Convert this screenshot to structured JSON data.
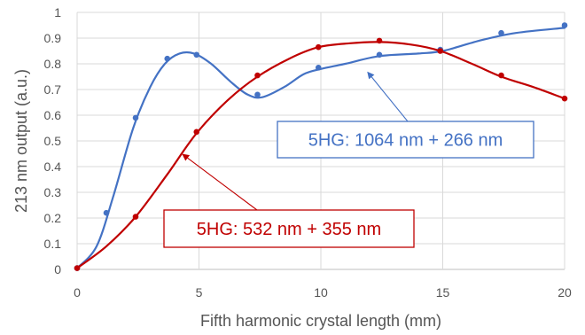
{
  "chart_data": {
    "type": "scatter",
    "xlabel": "Fifth harmonic crystal length (mm)",
    "ylabel": "213 nm output (a.u.)",
    "xlim": [
      0,
      20
    ],
    "ylim": [
      0,
      1
    ],
    "x_ticks": [
      "0",
      "5",
      "10",
      "15",
      "20"
    ],
    "y_ticks": [
      "0",
      "0.1",
      "0.2",
      "0.3",
      "0.4",
      "0.5",
      "0.6",
      "0.7",
      "0.8",
      "0.9",
      "1"
    ],
    "grid": true,
    "series": [
      {
        "name": "5HG: 1064 nm + 266 nm",
        "color": "#4472c4",
        "points": [
          [
            0,
            0.005
          ],
          [
            1.2,
            0.22
          ],
          [
            2.4,
            0.59
          ],
          [
            3.7,
            0.82
          ],
          [
            4.9,
            0.835
          ],
          [
            7.4,
            0.68
          ],
          [
            9.9,
            0.785
          ],
          [
            12.4,
            0.835
          ],
          [
            14.9,
            0.855
          ],
          [
            17.4,
            0.92
          ],
          [
            20,
            0.95
          ]
        ],
        "curve": [
          [
            0,
            0.005
          ],
          [
            0.8,
            0.09
          ],
          [
            1.5,
            0.29
          ],
          [
            2.3,
            0.55
          ],
          [
            3.0,
            0.71
          ],
          [
            3.6,
            0.8
          ],
          [
            4.2,
            0.84
          ],
          [
            4.8,
            0.84
          ],
          [
            5.5,
            0.8
          ],
          [
            6.3,
            0.73
          ],
          [
            7.0,
            0.68
          ],
          [
            7.6,
            0.67
          ],
          [
            8.5,
            0.71
          ],
          [
            9.3,
            0.76
          ],
          [
            10.0,
            0.78
          ],
          [
            11.0,
            0.8
          ],
          [
            12.4,
            0.83
          ],
          [
            14.0,
            0.84
          ],
          [
            15.0,
            0.85
          ],
          [
            16.5,
            0.89
          ],
          [
            18.0,
            0.92
          ],
          [
            20,
            0.94
          ]
        ],
        "label": {
          "text": "5HG: 1064 nm + 266 nm",
          "target": [
            11.9,
            0.77
          ]
        }
      },
      {
        "name": "5HG: 532 nm + 355 nm",
        "color": "#c00000",
        "points": [
          [
            0,
            0.005
          ],
          [
            2.4,
            0.205
          ],
          [
            4.9,
            0.535
          ],
          [
            7.4,
            0.755
          ],
          [
            9.9,
            0.865
          ],
          [
            12.4,
            0.89
          ],
          [
            14.9,
            0.85
          ],
          [
            17.4,
            0.755
          ],
          [
            20,
            0.665
          ]
        ],
        "curve": [
          [
            0,
            0.005
          ],
          [
            1.2,
            0.09
          ],
          [
            2.4,
            0.205
          ],
          [
            3.7,
            0.37
          ],
          [
            4.9,
            0.53
          ],
          [
            6.2,
            0.66
          ],
          [
            7.4,
            0.75
          ],
          [
            8.7,
            0.82
          ],
          [
            9.9,
            0.865
          ],
          [
            11.2,
            0.88
          ],
          [
            12.4,
            0.885
          ],
          [
            13.7,
            0.875
          ],
          [
            14.9,
            0.85
          ],
          [
            16.2,
            0.8
          ],
          [
            17.4,
            0.75
          ],
          [
            18.7,
            0.71
          ],
          [
            20,
            0.665
          ]
        ],
        "label": {
          "text": "5HG: 532 nm + 355 nm",
          "target": [
            4.3,
            0.45
          ]
        }
      }
    ]
  }
}
